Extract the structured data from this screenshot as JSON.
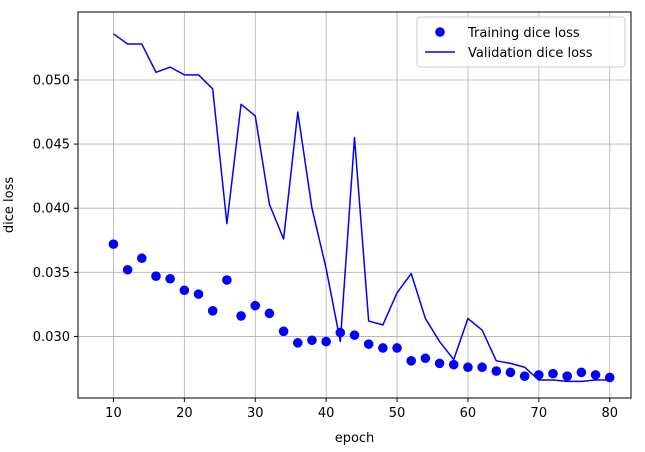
{
  "chart_data": {
    "type": "scatter",
    "xlabel": "epoch",
    "ylabel": "dice loss",
    "xlim": [
      5,
      83
    ],
    "ylim": [
      0.0252,
      0.0553
    ],
    "x_ticks": [
      10,
      20,
      30,
      40,
      50,
      60,
      70,
      80
    ],
    "y_ticks": [
      0.03,
      0.035,
      0.04,
      0.045,
      0.05
    ],
    "y_tick_labels": [
      "0.030",
      "0.035",
      "0.040",
      "0.045",
      "0.050"
    ],
    "grid": true,
    "legend_position": "top-right",
    "x": [
      10,
      12,
      14,
      16,
      18,
      20,
      22,
      24,
      26,
      28,
      30,
      32,
      34,
      36,
      38,
      40,
      42,
      44,
      46,
      48,
      50,
      52,
      54,
      56,
      58,
      60,
      62,
      64,
      66,
      68,
      70,
      72,
      74,
      76,
      78,
      80
    ],
    "series": [
      {
        "name": "Training dice loss",
        "style": "markers",
        "color": "#0000ff",
        "values": [
          0.0372,
          0.0352,
          0.0361,
          0.0347,
          0.0345,
          0.0336,
          0.0333,
          0.032,
          0.0344,
          0.0316,
          0.0324,
          0.0318,
          0.0304,
          0.0295,
          0.0297,
          0.0296,
          0.0303,
          0.0301,
          0.0294,
          0.0291,
          0.0291,
          0.0281,
          0.0283,
          0.0279,
          0.0278,
          0.0276,
          0.0276,
          0.0273,
          0.0272,
          0.0269,
          0.027,
          0.0271,
          0.0269,
          0.0272,
          0.027,
          0.0268
        ]
      },
      {
        "name": "Validation dice loss",
        "style": "line",
        "color": "#0000ff",
        "values": [
          0.0536,
          0.0528,
          0.0528,
          0.0506,
          0.051,
          0.0504,
          0.0504,
          0.0493,
          0.0388,
          0.0481,
          0.0472,
          0.0403,
          0.0376,
          0.0475,
          0.04,
          0.0353,
          0.0296,
          0.0455,
          0.0312,
          0.0309,
          0.0334,
          0.0349,
          0.0314,
          0.0296,
          0.0282,
          0.0314,
          0.0305,
          0.0281,
          0.0279,
          0.0276,
          0.0266,
          0.0266,
          0.0265,
          0.0265,
          0.0266,
          0.0266
        ]
      }
    ]
  }
}
